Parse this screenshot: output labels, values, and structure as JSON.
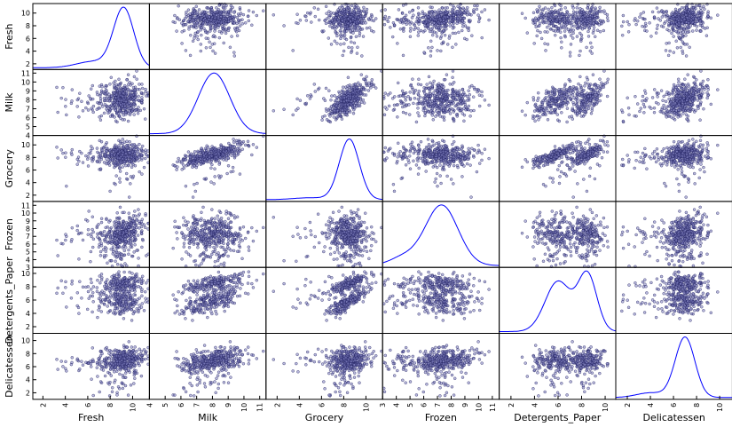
{
  "chart_data": {
    "type": "scatter_matrix",
    "variables": [
      "Fresh",
      "Milk",
      "Grocery",
      "Frozen",
      "Detergents_Paper",
      "Delicatessen"
    ],
    "ranges": {
      "Fresh": [
        1.1,
        11.5
      ],
      "Milk": [
        4.0,
        11.4
      ],
      "Grocery": [
        1.0,
        11.5
      ],
      "Frozen": [
        3.0,
        11.5
      ],
      "Detergents_Paper": [
        1.0,
        10.9
      ],
      "Delicatessen": [
        1.0,
        11.1
      ]
    },
    "ticks": {
      "Fresh": [
        2,
        4,
        6,
        8,
        10
      ],
      "Milk": [
        4,
        5,
        6,
        7,
        8,
        9,
        10,
        11
      ],
      "Grocery": [
        2,
        4,
        6,
        8,
        10
      ],
      "Frozen": [
        3,
        4,
        5,
        6,
        7,
        8,
        9,
        10,
        11
      ],
      "Detergents_Paper": [
        2,
        4,
        6,
        8,
        10
      ],
      "Delicatessen": [
        2,
        4,
        6,
        8,
        10
      ]
    },
    "distributions": {
      "Fresh": [
        {
          "mean": 9.2,
          "sd": 0.9,
          "w": 0.85
        },
        {
          "mean": 6.5,
          "sd": 1.5,
          "w": 0.15
        }
      ],
      "Milk": [
        {
          "mean": 8.1,
          "sd": 1.0,
          "w": 1.0
        }
      ],
      "Grocery": [
        {
          "mean": 8.5,
          "sd": 0.9,
          "w": 0.95
        },
        {
          "mean": 5.0,
          "sd": 1.5,
          "w": 0.05
        }
      ],
      "Frozen": [
        {
          "mean": 7.3,
          "sd": 1.2,
          "w": 0.9
        },
        {
          "mean": 4.5,
          "sd": 1.0,
          "w": 0.1
        }
      ],
      "Detergents_Paper": [
        {
          "mean": 6.0,
          "sd": 1.1,
          "w": 0.55
        },
        {
          "mean": 8.5,
          "sd": 0.8,
          "w": 0.45
        }
      ],
      "Delicatessen": [
        {
          "mean": 7.0,
          "sd": 0.85,
          "w": 0.9
        },
        {
          "mean": 4.0,
          "sd": 1.2,
          "w": 0.1
        }
      ]
    },
    "correlations": [
      [
        1.0,
        0.0,
        -0.05,
        0.35,
        -0.15,
        0.25
      ],
      [
        0.0,
        1.0,
        0.76,
        -0.05,
        0.68,
        0.35
      ],
      [
        -0.05,
        0.76,
        1.0,
        -0.15,
        0.82,
        0.22
      ],
      [
        0.35,
        -0.05,
        -0.15,
        1.0,
        -0.2,
        0.25
      ],
      [
        -0.15,
        0.68,
        0.82,
        -0.2,
        1.0,
        0.15
      ],
      [
        0.25,
        0.35,
        0.22,
        0.25,
        0.15,
        1.0
      ]
    ],
    "n_points": 440,
    "diagonal": "kde",
    "point_color": "#7f7fbf",
    "point_edge_color": "#1c1c5c",
    "line_color": "#0000ff",
    "grid": false
  }
}
